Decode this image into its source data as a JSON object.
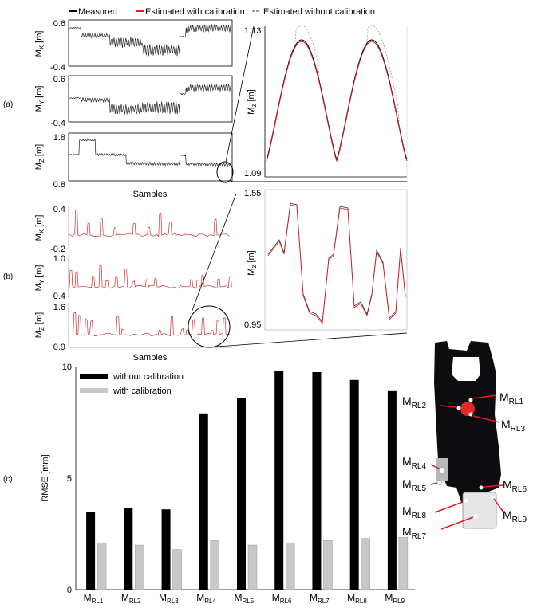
{
  "legend_top": {
    "items": [
      {
        "label": "Measured",
        "color": "#000000",
        "style": "solid"
      },
      {
        "label": "Estimated with calibration",
        "color": "#e41a1c",
        "style": "solid"
      },
      {
        "label": "Estimated without calibration",
        "color": "#999999",
        "style": "dashed"
      }
    ]
  },
  "panel_a": {
    "tag": "(a)",
    "xlabel": "Samples",
    "plots": [
      {
        "ylabel": "M",
        "ysub": "X",
        "unit": "[m]",
        "ymax": "0.6",
        "ymin": "-0.4"
      },
      {
        "ylabel": "M",
        "ysub": "Y",
        "unit": "[m]",
        "ymax": "0.6",
        "ymin": "-0.4"
      },
      {
        "ylabel": "M",
        "ysub": "Z",
        "unit": "[m]",
        "ymax": "1.8",
        "ymin": "0.8"
      }
    ],
    "zoom": {
      "ylabel": "M",
      "ysub": "z",
      "unit": "[m]",
      "ymax": "1.13",
      "ymin": "1.09"
    }
  },
  "panel_b": {
    "tag": "(b)",
    "xlabel": "Samples",
    "plots": [
      {
        "ylabel": "M",
        "ysub": "X",
        "unit": "[m]",
        "ymax": "0.4",
        "ymin": "-0.2"
      },
      {
        "ylabel": "M",
        "ysub": "Y",
        "unit": "[m]",
        "ymax": "1.0",
        "ymin": "0.4"
      },
      {
        "ylabel": "M",
        "ysub": "Z",
        "unit": "[m]",
        "ymax": "1.6",
        "ymin": "0.9"
      }
    ],
    "zoom": {
      "ylabel": "M",
      "ysub": "z",
      "unit": "[m]",
      "ymax": "1.55",
      "ymin": "0.95"
    }
  },
  "panel_c": {
    "tag": "(c)",
    "marker_labels": [
      {
        "main": "M",
        "sub": "RL2"
      },
      {
        "main": "M",
        "sub": "RL1"
      },
      {
        "main": "M",
        "sub": "RL3"
      },
      {
        "main": "M",
        "sub": "RL4"
      },
      {
        "main": "M",
        "sub": "RL5"
      },
      {
        "main": "M",
        "sub": "RL6"
      },
      {
        "main": "M",
        "sub": "RL8"
      },
      {
        "main": "M",
        "sub": "RL9"
      },
      {
        "main": "M",
        "sub": "RL7"
      }
    ]
  },
  "chart_data": {
    "type": "bar",
    "ylabel": "RMSE [mm]",
    "ylim": [
      0,
      10
    ],
    "yticks": [
      "0",
      "5",
      "10"
    ],
    "legend_placement": "top-left",
    "categories": [
      {
        "main": "M",
        "sub": "RL1"
      },
      {
        "main": "M",
        "sub": "RL2"
      },
      {
        "main": "M",
        "sub": "RL3"
      },
      {
        "main": "M",
        "sub": "RL4"
      },
      {
        "main": "M",
        "sub": "RL5"
      },
      {
        "main": "M",
        "sub": "RL6"
      },
      {
        "main": "M",
        "sub": "RL7"
      },
      {
        "main": "M",
        "sub": "RL8"
      },
      {
        "main": "M",
        "sub": "RL9"
      }
    ],
    "series": [
      {
        "name": "without calibration",
        "color": "#000000",
        "values": [
          3.5,
          3.65,
          3.6,
          7.9,
          8.6,
          9.8,
          9.75,
          9.4,
          8.9
        ]
      },
      {
        "name": "with calibration",
        "color": "#c8c8c8",
        "values": [
          2.1,
          2.0,
          1.8,
          2.2,
          2.0,
          2.1,
          2.2,
          2.3,
          2.35
        ]
      }
    ]
  }
}
